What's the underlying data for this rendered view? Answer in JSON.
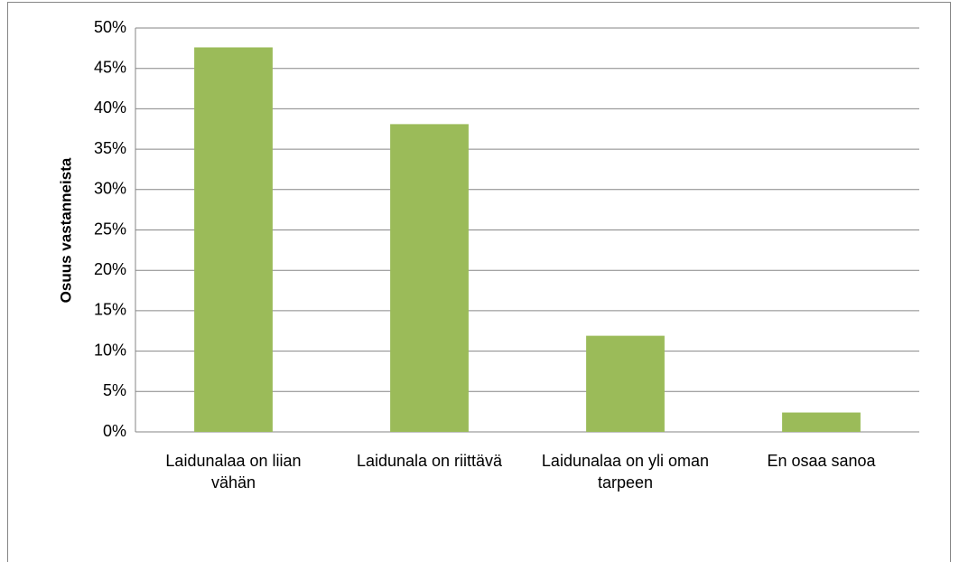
{
  "chart_data": {
    "type": "bar",
    "ylabel": "Osuus vastanneista",
    "categories": [
      "Laidunalaa on liian vähän",
      "Laidunala on riittävä",
      "Laidunalaa on yli oman tarpeen",
      "En osaa sanoa"
    ],
    "values": [
      47.6,
      38.1,
      11.9,
      2.4
    ],
    "color": "#9bbb59",
    "ylim": [
      0,
      50
    ],
    "yticks": [
      {
        "value": 0,
        "label": "0%"
      },
      {
        "value": 5,
        "label": "5%"
      },
      {
        "value": 10,
        "label": "10%"
      },
      {
        "value": 15,
        "label": "15%"
      },
      {
        "value": 20,
        "label": "20%"
      },
      {
        "value": 25,
        "label": "25%"
      },
      {
        "value": 30,
        "label": "30%"
      },
      {
        "value": 35,
        "label": "35%"
      },
      {
        "value": 40,
        "label": "40%"
      },
      {
        "value": 45,
        "label": "45%"
      },
      {
        "value": 50,
        "label": "50%"
      }
    ],
    "grid": true
  }
}
